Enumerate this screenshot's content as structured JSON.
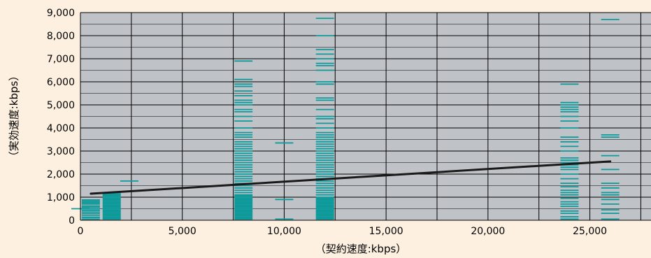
{
  "chart_data": {
    "type": "scatter",
    "xlabel": "（契約速度:kbps）",
    "ylabel": "（実効速度:kbps）",
    "xlim": [
      0,
      28000
    ],
    "ylim": [
      0,
      9000
    ],
    "x_ticks": [
      {
        "value": 0,
        "label": "0"
      },
      {
        "value": 5000,
        "label": "5,000"
      },
      {
        "value": 10000,
        "label": "10,000"
      },
      {
        "value": 15000,
        "label": "15,000"
      },
      {
        "value": 20000,
        "label": "20,000"
      },
      {
        "value": 25000,
        "label": "25,000"
      }
    ],
    "y_ticks": [
      {
        "value": 0,
        "label": "0"
      },
      {
        "value": 1000,
        "label": "1,000"
      },
      {
        "value": 2000,
        "label": "2,000"
      },
      {
        "value": 3000,
        "label": "3,000"
      },
      {
        "value": 4000,
        "label": "4,000"
      },
      {
        "value": 5000,
        "label": "5,000"
      },
      {
        "value": 6000,
        "label": "6,000"
      },
      {
        "value": 7000,
        "label": "7,000"
      },
      {
        "value": 8000,
        "label": "8,000"
      },
      {
        "value": 9000,
        "label": "9,000"
      }
    ],
    "grid": true,
    "plot_background": "#BFC3C8",
    "page_background": "#FDF0E0",
    "marker_color": "#0E9A9A",
    "trend_color": "#1A1A1A",
    "marker_shape": "short horizontal dash",
    "series": [
      {
        "x": 0,
        "y": [
          500
        ]
      },
      {
        "x": 512,
        "y": [
          50,
          120,
          200,
          280,
          350,
          420,
          490,
          560,
          620,
          700,
          760,
          820,
          880
        ]
      },
      {
        "x": 1536,
        "y": [
          50,
          100,
          150,
          200,
          250,
          300,
          350,
          400,
          450,
          500,
          550,
          600,
          650,
          700,
          750,
          800,
          850,
          900,
          950,
          1000,
          1050,
          1100,
          1150
        ]
      },
      {
        "x": 2400,
        "y": [
          1700
        ]
      },
      {
        "x": 8000,
        "y": [
          50,
          100,
          150,
          200,
          250,
          300,
          350,
          400,
          450,
          500,
          550,
          600,
          650,
          700,
          750,
          800,
          850,
          900,
          950,
          1000,
          1050,
          1100,
          1200,
          1300,
          1400,
          1500,
          1600,
          1700,
          1800,
          1900,
          2000,
          2100,
          2200,
          2300,
          2400,
          2500,
          2600,
          2700,
          2800,
          2900,
          3000,
          3100,
          3200,
          3300,
          3400,
          3600,
          3700,
          3800,
          4000,
          4300,
          4500,
          4700,
          4800,
          5000,
          5100,
          5200,
          5400,
          5600,
          5800,
          5900,
          6100,
          6900
        ]
      },
      {
        "x": 10000,
        "y": [
          50,
          900,
          3350
        ]
      },
      {
        "x": 12000,
        "y": [
          50,
          100,
          150,
          200,
          250,
          300,
          350,
          400,
          450,
          500,
          550,
          600,
          650,
          700,
          750,
          800,
          850,
          900,
          950,
          1000,
          1100,
          1200,
          1300,
          1400,
          1500,
          1600,
          1700,
          1800,
          1900,
          2000,
          2100,
          2200,
          2300,
          2400,
          2500,
          2600,
          2700,
          2800,
          2900,
          3000,
          3100,
          3200,
          3300,
          3400,
          3500,
          3600,
          3700,
          3800,
          4000,
          4200,
          4400,
          4500,
          4800,
          5200,
          5300,
          5900,
          6000,
          6500,
          6700,
          6800,
          7000,
          7200,
          7400,
          8000,
          8750
        ]
      },
      {
        "x": 24000,
        "y": [
          50,
          150,
          300,
          400,
          600,
          700,
          800,
          950,
          1100,
          1200,
          1300,
          1450,
          1600,
          1800,
          2000,
          2200,
          2300,
          2400,
          2500,
          2600,
          2700,
          3000,
          3200,
          3400,
          3600,
          4000,
          4300,
          4500,
          4700,
          4800,
          4900,
          5000,
          5100,
          5900
        ]
      },
      {
        "x": 26000,
        "y": [
          50,
          300,
          450,
          700,
          900,
          1100,
          1200,
          1400,
          1600,
          2200,
          2800,
          3600,
          3700,
          8700
        ]
      }
    ],
    "trend": {
      "x1": 512,
      "y1": 1150,
      "x2": 26000,
      "y2": 2550
    }
  }
}
